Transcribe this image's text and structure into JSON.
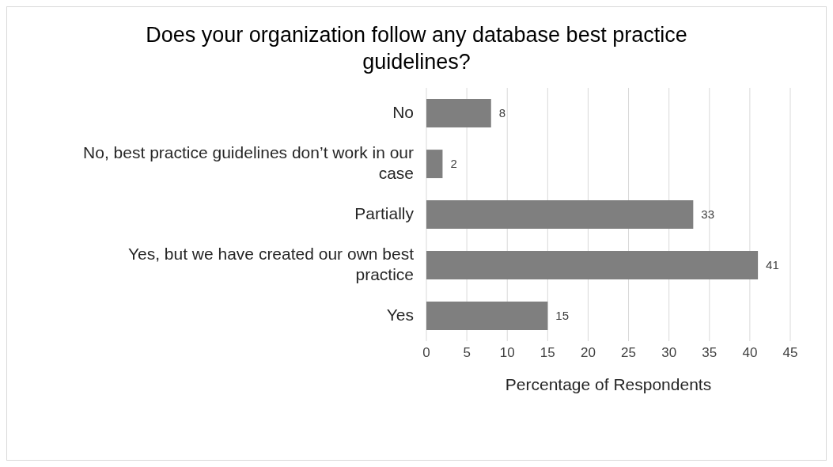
{
  "chart_data": {
    "type": "bar",
    "orientation": "horizontal",
    "title": "Does your organization  follow any database best practice guidelines?",
    "xlabel": "Percentage of Respondents",
    "categories": [
      "No",
      "No, best practice guidelines don’t work in our case",
      "Partially",
      "Yes, but we have created our own best practice",
      "Yes"
    ],
    "values": [
      8,
      2,
      33,
      41,
      15
    ],
    "color": "#7f7f7f",
    "data_labels": true,
    "xlim": [
      0,
      45
    ],
    "xticks": [
      0,
      5,
      10,
      15,
      20,
      25,
      30,
      35,
      40,
      45
    ],
    "grid": "x"
  }
}
